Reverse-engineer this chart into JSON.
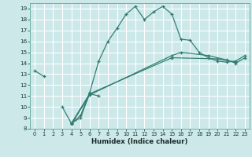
{
  "xlabel": "Humidex (Indice chaleur)",
  "background_color": "#cce8e8",
  "grid_color": "#ffffff",
  "line_color": "#2e7b6e",
  "xlim": [
    -0.5,
    23.5
  ],
  "ylim": [
    8,
    19.5
  ],
  "yticks": [
    8,
    9,
    10,
    11,
    12,
    13,
    14,
    15,
    16,
    17,
    18,
    19
  ],
  "xticks": [
    0,
    1,
    2,
    3,
    4,
    5,
    6,
    7,
    8,
    9,
    10,
    11,
    12,
    13,
    14,
    15,
    16,
    17,
    18,
    19,
    20,
    21,
    22,
    23
  ],
  "series": [
    [
      [
        0,
        13.3
      ],
      [
        1,
        12.8
      ]
    ],
    [
      [
        2,
        null
      ],
      [
        3,
        10.0
      ],
      [
        4,
        8.5
      ],
      [
        5,
        9.0
      ],
      [
        6,
        11.2
      ],
      [
        7,
        11.0
      ]
    ],
    [
      [
        4,
        8.5
      ],
      [
        5,
        9.2
      ],
      [
        6,
        11.3
      ],
      [
        7,
        14.2
      ],
      [
        8,
        16.0
      ],
      [
        9,
        17.2
      ],
      [
        10,
        18.5
      ],
      [
        11,
        19.2
      ],
      [
        12,
        18.0
      ],
      [
        13,
        18.7
      ],
      [
        14,
        19.2
      ],
      [
        15,
        18.5
      ],
      [
        16,
        16.2
      ],
      [
        17,
        16.1
      ],
      [
        18,
        15.0
      ],
      [
        19,
        14.5
      ],
      [
        20,
        14.2
      ],
      [
        21,
        14.1
      ],
      [
        22,
        14.2
      ],
      [
        23,
        14.7
      ]
    ],
    [
      [
        4,
        8.4
      ],
      [
        6,
        11.1
      ],
      [
        15,
        14.7
      ],
      [
        16,
        15.0
      ],
      [
        19,
        14.7
      ],
      [
        21,
        14.3
      ],
      [
        22,
        14.0
      ],
      [
        23,
        14.5
      ]
    ],
    [
      [
        4,
        8.5
      ],
      [
        6,
        11.2
      ],
      [
        15,
        14.5
      ],
      [
        20,
        14.4
      ],
      [
        22,
        14.1
      ]
    ]
  ]
}
